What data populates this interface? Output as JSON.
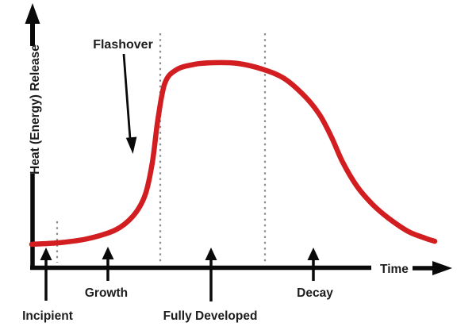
{
  "figure": {
    "type": "fire-development-curve-diagram",
    "background_color": "#ffffff",
    "y_axis_label": "Heat (Energy) Release",
    "x_axis_label": "Time",
    "annotation_label": "Flashover",
    "phases": [
      {
        "label": "Incipient"
      },
      {
        "label": "Growth"
      },
      {
        "label": "Fully Developed"
      },
      {
        "label": "Decay"
      }
    ],
    "colors": {
      "curve": "#d21e20",
      "axis": "#0a0a0a",
      "text": "#1d1d1d",
      "boundary_dotted": "#8c8c8c"
    }
  },
  "chart_data": {
    "type": "line",
    "title": "",
    "xlabel": "Time",
    "ylabel": "Heat (Energy) Release",
    "axes_numeric": false,
    "x_range_relative": [
      0,
      100
    ],
    "y_range_relative": [
      0,
      100
    ],
    "grid": "off",
    "legend": "none",
    "series": [
      {
        "name": "Heat (Energy) Release over Time",
        "color": "#d21e20",
        "points": [
          [
            0,
            11.6
          ],
          [
            6.9,
            12.4
          ],
          [
            13.7,
            14.3
          ],
          [
            20.6,
            18.5
          ],
          [
            25.1,
            25.5
          ],
          [
            28.0,
            35.5
          ],
          [
            29.8,
            51.4
          ],
          [
            31.2,
            72.6
          ],
          [
            32.9,
            90.0
          ],
          [
            35.7,
            96.5
          ],
          [
            40.2,
            99.2
          ],
          [
            45.1,
            100.0
          ],
          [
            51.0,
            99.6
          ],
          [
            56.9,
            96.9
          ],
          [
            62.4,
            92.3
          ],
          [
            67.6,
            83.4
          ],
          [
            71.2,
            74.5
          ],
          [
            74.1,
            63.7
          ],
          [
            76.9,
            51.4
          ],
          [
            80.4,
            39.8
          ],
          [
            84.3,
            30.9
          ],
          [
            88.2,
            24.3
          ],
          [
            93.1,
            17.8
          ],
          [
            97.1,
            14.7
          ],
          [
            99.6,
            13.1
          ]
        ]
      }
    ],
    "phase_markers": [
      {
        "label": "Incipient",
        "t": 3.5
      },
      {
        "label": "Growth",
        "t": 18.8
      },
      {
        "label": "Fully Developed",
        "t": 44.3
      },
      {
        "label": "Decay",
        "t": 69.6
      }
    ],
    "phase_boundaries_t": [
      6.3,
      31.8,
      57.6
    ],
    "annotations": [
      {
        "label": "Flashover",
        "points_to_t": 27.5,
        "description": "arrow points at steep rise of curve between Growth and Fully Developed"
      }
    ]
  }
}
